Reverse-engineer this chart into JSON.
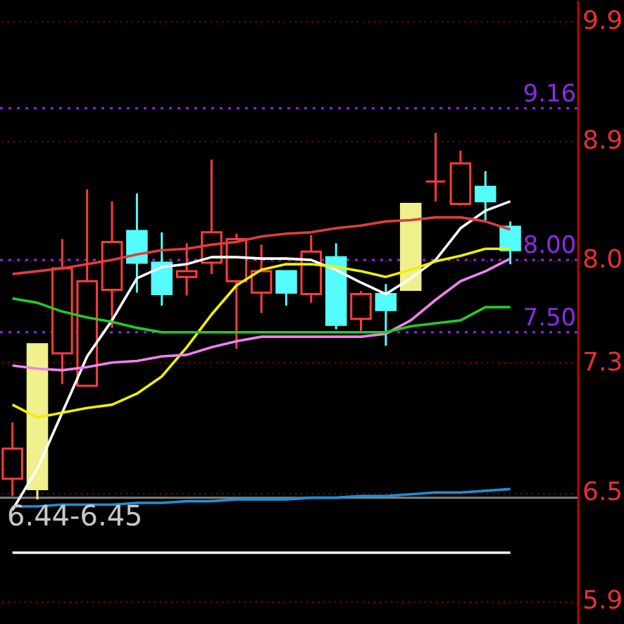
{
  "chart_data": {
    "type": "candlestick",
    "categories": [
      null,
      null,
      null,
      null,
      null,
      null,
      null,
      null,
      null,
      null,
      null,
      null,
      null,
      null,
      null,
      null,
      null,
      null,
      null,
      null,
      null
    ],
    "ohlc": [
      [
        6.58,
        6.92,
        6.48,
        6.76
      ],
      [
        6.52,
        7.42,
        6.46,
        7.42
      ],
      [
        7.36,
        8.15,
        7.16,
        7.94
      ],
      [
        7.15,
        8.52,
        7.15,
        7.85
      ],
      [
        7.79,
        8.43,
        7.53,
        8.13
      ],
      [
        8.21,
        8.49,
        7.77,
        7.98
      ],
      [
        7.98,
        8.2,
        7.68,
        7.76
      ],
      [
        7.88,
        8.12,
        7.75,
        7.92
      ],
      [
        7.98,
        8.75,
        7.9,
        8.2
      ],
      [
        7.85,
        8.19,
        7.39,
        8.15
      ],
      [
        7.77,
        8.11,
        7.63,
        7.92
      ],
      [
        7.92,
        7.92,
        7.68,
        7.77
      ],
      [
        7.76,
        8.18,
        7.7,
        8.06
      ],
      [
        8.02,
        8.12,
        7.52,
        7.55
      ],
      [
        7.59,
        7.78,
        7.51,
        7.76
      ],
      [
        7.76,
        7.83,
        7.41,
        7.65
      ],
      [
        7.79,
        8.41,
        7.79,
        8.41
      ],
      [
        8.58,
        8.96,
        8.43,
        8.58
      ],
      [
        8.41,
        8.82,
        8.4,
        8.72
      ],
      [
        8.54,
        8.66,
        8.28,
        8.43
      ],
      [
        8.24,
        8.28,
        7.97,
        8.07
      ]
    ],
    "colors": [
      "#ff3c3c",
      "#f0f08c",
      "#ff3c3c",
      "#ff3c3c",
      "#ff3c3c",
      "#54fcfc",
      "#54fcfc",
      "#ff3c3c",
      "#ff3c3c",
      "#ff3c3c",
      "#ff3c3c",
      "#54fcfc",
      "#ff3c3c",
      "#54fcfc",
      "#ff3c3c",
      "#54fcfc",
      "#f0f08c",
      "#ff3c3c",
      "#ff3c3c",
      "#54fcfc",
      "#54fcfc"
    ],
    "series": [
      {
        "type": "line",
        "color": "#ffffff",
        "values": [
          6.4,
          6.64,
          6.98,
          7.34,
          7.58,
          7.87,
          7.95,
          7.97,
          8.02,
          8.02,
          8.01,
          8.01,
          8.0,
          7.93,
          7.84,
          7.76,
          7.87,
          8.0,
          8.23,
          8.36,
          8.43
        ]
      },
      {
        "type": "line",
        "color": "#f0f000",
        "values": [
          7.03,
          6.95,
          6.98,
          7.01,
          7.03,
          7.1,
          7.21,
          7.4,
          7.62,
          7.82,
          7.93,
          7.97,
          7.97,
          7.95,
          7.92,
          7.88,
          7.93,
          7.99,
          8.03,
          8.08,
          8.08
        ]
      },
      {
        "type": "line",
        "color": "#ee82ee",
        "values": [
          7.28,
          7.26,
          7.25,
          7.27,
          7.3,
          7.31,
          7.34,
          7.35,
          7.4,
          7.44,
          7.47,
          7.47,
          7.47,
          7.47,
          7.47,
          7.49,
          7.58,
          7.72,
          7.85,
          7.92,
          8.01
        ]
      },
      {
        "type": "line",
        "color": "#22cc22",
        "values": [
          7.73,
          7.7,
          7.64,
          7.6,
          7.57,
          7.53,
          7.5,
          7.5,
          7.5,
          7.5,
          7.5,
          7.5,
          7.5,
          7.5,
          7.5,
          7.5,
          7.54,
          7.56,
          7.58,
          7.67,
          7.67
        ]
      },
      {
        "type": "line",
        "color": "#e03c3c",
        "values": [
          7.9,
          7.92,
          7.94,
          7.97,
          8.0,
          8.04,
          8.07,
          8.08,
          8.11,
          8.13,
          8.17,
          8.19,
          8.2,
          8.23,
          8.25,
          8.28,
          8.29,
          8.31,
          8.31,
          8.28,
          8.22
        ]
      },
      {
        "type": "line",
        "color": "#1e90d0",
        "values": [
          6.42,
          6.42,
          6.43,
          6.43,
          6.43,
          6.44,
          6.44,
          6.45,
          6.45,
          6.46,
          6.46,
          6.46,
          6.47,
          6.47,
          6.48,
          6.48,
          6.49,
          6.5,
          6.5,
          6.51,
          6.52
        ]
      },
      {
        "type": "line",
        "color": "#ffffff",
        "values": [
          6.16,
          6.16,
          6.16,
          6.16,
          6.16,
          6.16,
          6.16,
          6.16,
          6.16,
          6.16,
          6.16,
          6.16,
          6.16,
          6.16,
          6.16,
          6.16,
          6.16,
          6.16,
          6.16,
          6.16,
          6.16
        ]
      }
    ],
    "ylim": [
      5.78,
      10.09
    ],
    "log": true,
    "yticks": [
      9.9,
      8.9,
      {
        "value": 8.0,
        "label": "8.0"
      },
      7.3,
      6.5,
      5.9
    ],
    "grid": "y",
    "ref_lines": [
      {
        "axis": "y",
        "value": 9.16,
        "label": "9.16",
        "color": "#8a2be2",
        "line_style": "dotted"
      },
      {
        "axis": "y",
        "value": 8.0,
        "label": "8.00",
        "color": "#8a2be2",
        "line_style": "dotted"
      },
      {
        "axis": "y",
        "value": 7.5,
        "label": "7.50",
        "color": "#8a2be2",
        "line_style": "dotted"
      },
      {
        "axis": "y",
        "value": 6.47,
        "color": "#808080",
        "line_style": "solid"
      }
    ],
    "annotations": [
      "6.44-6.45"
    ]
  }
}
